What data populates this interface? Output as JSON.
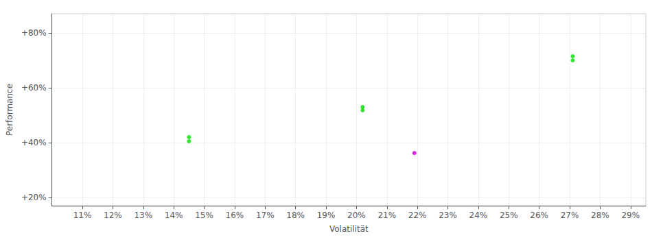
{
  "chart_data": {
    "type": "scatter",
    "xlabel": "Volatilität",
    "ylabel": "Performance",
    "xlim": [
      0.1,
      0.295
    ],
    "ylim": [
      0.17,
      0.87
    ],
    "xticks": [
      {
        "value": 0.11,
        "label": "11%"
      },
      {
        "value": 0.12,
        "label": "12%"
      },
      {
        "value": 0.13,
        "label": "13%"
      },
      {
        "value": 0.14,
        "label": "14%"
      },
      {
        "value": 0.15,
        "label": "15%"
      },
      {
        "value": 0.16,
        "label": "16%"
      },
      {
        "value": 0.17,
        "label": "17%"
      },
      {
        "value": 0.18,
        "label": "18%"
      },
      {
        "value": 0.19,
        "label": "19%"
      },
      {
        "value": 0.2,
        "label": "20%"
      },
      {
        "value": 0.21,
        "label": "21%"
      },
      {
        "value": 0.22,
        "label": "22%"
      },
      {
        "value": 0.23,
        "label": "23%"
      },
      {
        "value": 0.24,
        "label": "24%"
      },
      {
        "value": 0.25,
        "label": "25%"
      },
      {
        "value": 0.26,
        "label": "26%"
      },
      {
        "value": 0.27,
        "label": "27%"
      },
      {
        "value": 0.28,
        "label": "28%"
      },
      {
        "value": 0.29,
        "label": "29%"
      }
    ],
    "yticks": [
      {
        "value": 0.2,
        "label": "+20%"
      },
      {
        "value": 0.4,
        "label": "+40%"
      },
      {
        "value": 0.6,
        "label": "+60%"
      },
      {
        "value": 0.8,
        "label": "+80%"
      }
    ],
    "grid": true,
    "series": [
      {
        "color": "#00dd00",
        "marker": "circle",
        "x": [
          0.145,
          0.145,
          0.202,
          0.202,
          0.271,
          0.271
        ],
        "values": [
          0.405,
          0.42,
          0.518,
          0.53,
          0.7,
          0.715
        ]
      },
      {
        "color": "#cc00cc",
        "marker": "circle",
        "x": [
          0.219
        ],
        "values": [
          0.362
        ]
      }
    ]
  }
}
